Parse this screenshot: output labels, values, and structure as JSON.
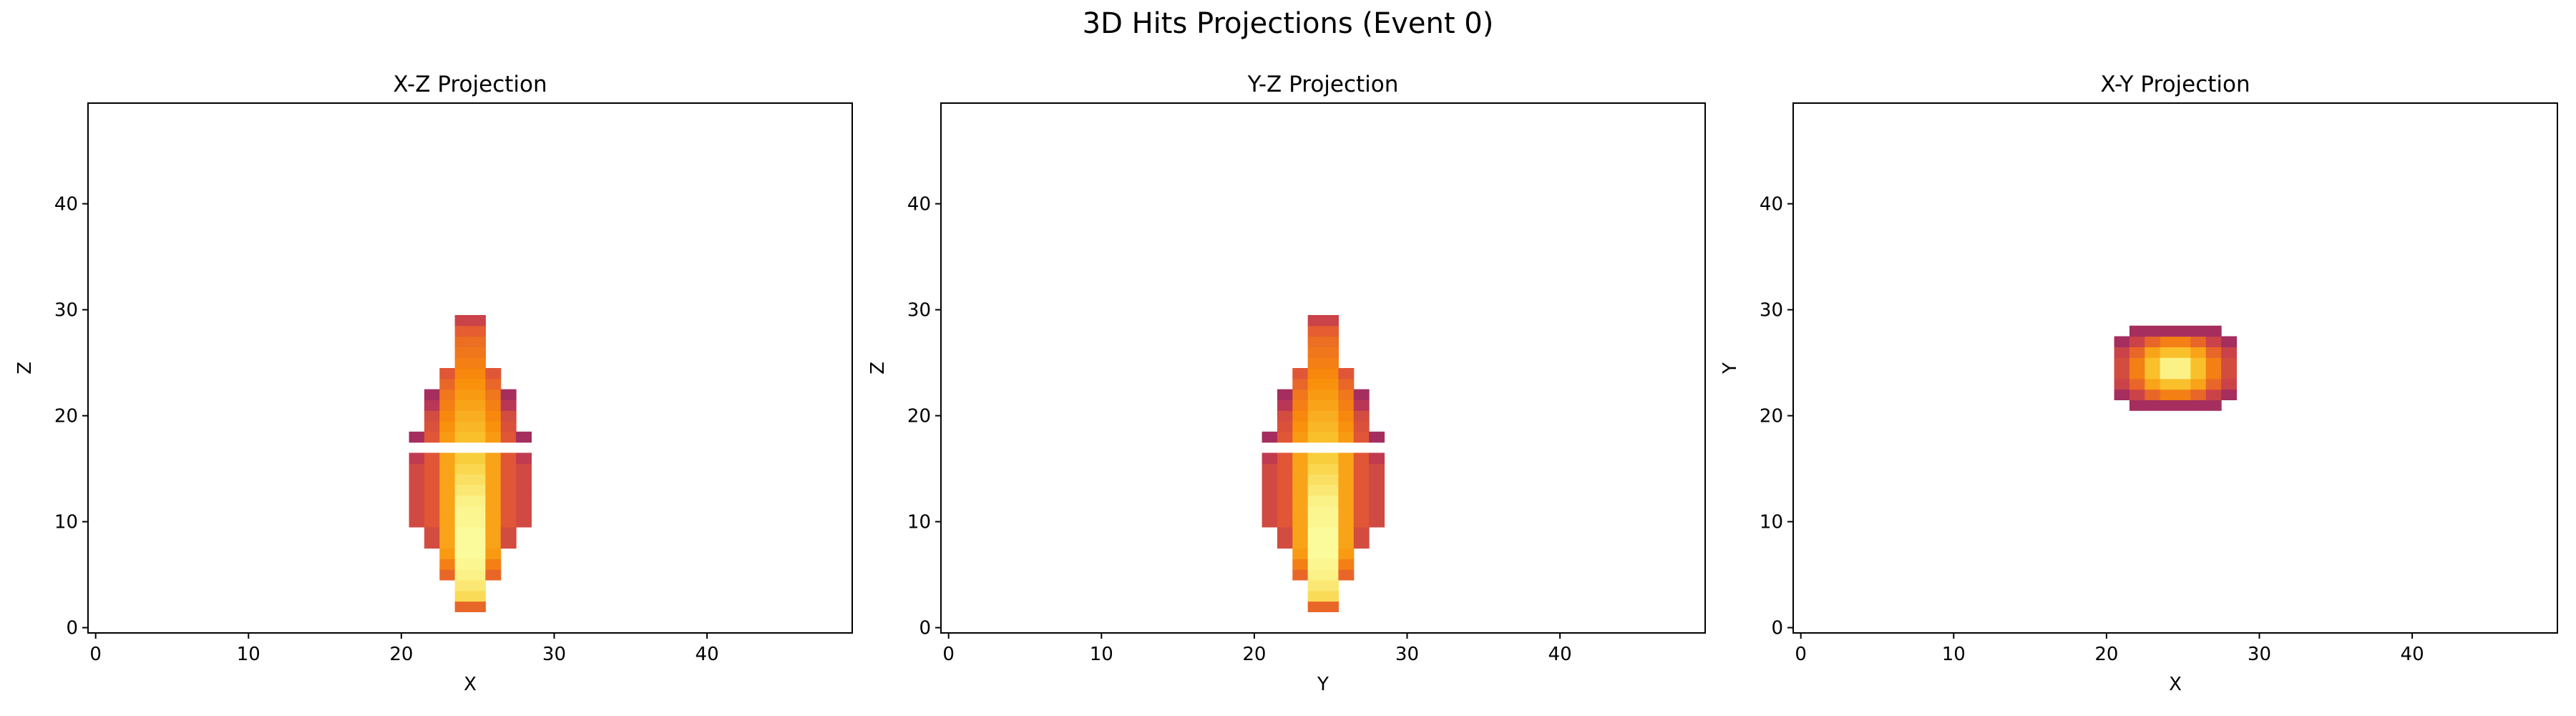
{
  "figure": {
    "title": "3D Hits Projections (Event 0)"
  },
  "chart_data": [
    {
      "type": "heatmap",
      "title": "X-Z Projection",
      "xlabel": "X",
      "ylabel": "Z",
      "xlim": [
        -0.5,
        49.5
      ],
      "ylim": [
        -0.5,
        49.5
      ],
      "xticks": [
        0,
        10,
        20,
        30,
        40
      ],
      "yticks": [
        0,
        10,
        20,
        30,
        40
      ],
      "colormap": "inferno",
      "color_range": [
        0,
        1
      ],
      "x_index": 21,
      "rows": [
        {
          "y": 2,
          "v": [
            0,
            0,
            0,
            0.66,
            0.66,
            0,
            0,
            0
          ]
        },
        {
          "y": 3,
          "v": [
            0,
            0,
            0,
            0.92,
            0.92,
            0,
            0,
            0
          ]
        },
        {
          "y": 4,
          "v": [
            0,
            0,
            0,
            0.95,
            0.95,
            0,
            0,
            0
          ]
        },
        {
          "y": 5,
          "v": [
            0,
            0,
            0.66,
            0.97,
            0.97,
            0.66,
            0,
            0
          ]
        },
        {
          "y": 6,
          "v": [
            0,
            0,
            0.72,
            0.98,
            0.98,
            0.72,
            0,
            0
          ]
        },
        {
          "y": 7,
          "v": [
            0,
            0,
            0.78,
            0.99,
            0.99,
            0.78,
            0,
            0
          ]
        },
        {
          "y": 8,
          "v": [
            0,
            0.58,
            0.8,
            0.99,
            0.99,
            0.8,
            0.58,
            0
          ]
        },
        {
          "y": 9,
          "v": [
            0,
            0.58,
            0.8,
            0.99,
            0.99,
            0.8,
            0.58,
            0
          ]
        },
        {
          "y": 10,
          "v": [
            0.57,
            0.62,
            0.8,
            0.98,
            0.98,
            0.8,
            0.62,
            0.57
          ]
        },
        {
          "y": 11,
          "v": [
            0.57,
            0.62,
            0.8,
            0.98,
            0.98,
            0.8,
            0.62,
            0.57
          ]
        },
        {
          "y": 12,
          "v": [
            0.57,
            0.62,
            0.8,
            0.97,
            0.97,
            0.8,
            0.62,
            0.57
          ]
        },
        {
          "y": 13,
          "v": [
            0.57,
            0.62,
            0.8,
            0.95,
            0.95,
            0.8,
            0.62,
            0.57
          ]
        },
        {
          "y": 14,
          "v": [
            0.57,
            0.62,
            0.8,
            0.93,
            0.93,
            0.8,
            0.62,
            0.57
          ]
        },
        {
          "y": 15,
          "v": [
            0.57,
            0.62,
            0.8,
            0.91,
            0.91,
            0.8,
            0.62,
            0.57
          ]
        },
        {
          "y": 16,
          "v": [
            0.52,
            0.62,
            0.8,
            0.89,
            0.89,
            0.8,
            0.62,
            0.52
          ]
        },
        {
          "y": 18,
          "v": [
            0.45,
            0.62,
            0.78,
            0.86,
            0.86,
            0.78,
            0.62,
            0.45
          ]
        },
        {
          "y": 19,
          "v": [
            0,
            0.6,
            0.76,
            0.84,
            0.84,
            0.76,
            0.6,
            0
          ]
        },
        {
          "y": 20,
          "v": [
            0,
            0.58,
            0.74,
            0.82,
            0.82,
            0.74,
            0.58,
            0
          ]
        },
        {
          "y": 21,
          "v": [
            0,
            0.5,
            0.72,
            0.8,
            0.8,
            0.72,
            0.5,
            0
          ]
        },
        {
          "y": 22,
          "v": [
            0,
            0.45,
            0.7,
            0.78,
            0.78,
            0.7,
            0.45,
            0
          ]
        },
        {
          "y": 23,
          "v": [
            0,
            0,
            0.66,
            0.76,
            0.76,
            0.66,
            0,
            0
          ]
        },
        {
          "y": 24,
          "v": [
            0,
            0,
            0.62,
            0.74,
            0.74,
            0.62,
            0,
            0
          ]
        },
        {
          "y": 25,
          "v": [
            0,
            0,
            0,
            0.72,
            0.72,
            0,
            0,
            0
          ]
        },
        {
          "y": 26,
          "v": [
            0,
            0,
            0,
            0.7,
            0.7,
            0,
            0,
            0
          ]
        },
        {
          "y": 27,
          "v": [
            0,
            0,
            0,
            0.68,
            0.68,
            0,
            0,
            0
          ]
        },
        {
          "y": 28,
          "v": [
            0,
            0,
            0,
            0.64,
            0.64,
            0,
            0,
            0
          ]
        },
        {
          "y": 29,
          "v": [
            0,
            0,
            0,
            0.55,
            0.55,
            0,
            0,
            0
          ]
        }
      ]
    },
    {
      "type": "heatmap",
      "title": "Y-Z Projection",
      "xlabel": "Y",
      "ylabel": "Z",
      "xlim": [
        -0.5,
        49.5
      ],
      "ylim": [
        -0.5,
        49.5
      ],
      "xticks": [
        0,
        10,
        20,
        30,
        40
      ],
      "yticks": [
        0,
        10,
        20,
        30,
        40
      ],
      "colormap": "inferno",
      "color_range": [
        0,
        1
      ],
      "x_index": 21,
      "rows": [
        {
          "y": 2,
          "v": [
            0,
            0,
            0,
            0.66,
            0.66,
            0,
            0,
            0
          ]
        },
        {
          "y": 3,
          "v": [
            0,
            0,
            0,
            0.92,
            0.92,
            0,
            0,
            0
          ]
        },
        {
          "y": 4,
          "v": [
            0,
            0,
            0,
            0.95,
            0.95,
            0,
            0,
            0
          ]
        },
        {
          "y": 5,
          "v": [
            0,
            0,
            0.66,
            0.97,
            0.97,
            0.66,
            0,
            0
          ]
        },
        {
          "y": 6,
          "v": [
            0,
            0,
            0.72,
            0.98,
            0.98,
            0.72,
            0,
            0
          ]
        },
        {
          "y": 7,
          "v": [
            0,
            0,
            0.78,
            0.99,
            0.99,
            0.78,
            0,
            0
          ]
        },
        {
          "y": 8,
          "v": [
            0,
            0.58,
            0.8,
            0.99,
            0.99,
            0.8,
            0.58,
            0
          ]
        },
        {
          "y": 9,
          "v": [
            0,
            0.58,
            0.8,
            0.99,
            0.99,
            0.8,
            0.58,
            0
          ]
        },
        {
          "y": 10,
          "v": [
            0.57,
            0.62,
            0.8,
            0.98,
            0.98,
            0.8,
            0.62,
            0.57
          ]
        },
        {
          "y": 11,
          "v": [
            0.57,
            0.62,
            0.8,
            0.98,
            0.98,
            0.8,
            0.62,
            0.57
          ]
        },
        {
          "y": 12,
          "v": [
            0.57,
            0.62,
            0.8,
            0.97,
            0.97,
            0.8,
            0.62,
            0.57
          ]
        },
        {
          "y": 13,
          "v": [
            0.57,
            0.62,
            0.8,
            0.95,
            0.95,
            0.8,
            0.62,
            0.57
          ]
        },
        {
          "y": 14,
          "v": [
            0.57,
            0.62,
            0.8,
            0.93,
            0.93,
            0.8,
            0.62,
            0.57
          ]
        },
        {
          "y": 15,
          "v": [
            0.57,
            0.62,
            0.8,
            0.91,
            0.91,
            0.8,
            0.62,
            0.57
          ]
        },
        {
          "y": 16,
          "v": [
            0.52,
            0.62,
            0.8,
            0.89,
            0.89,
            0.8,
            0.62,
            0.52
          ]
        },
        {
          "y": 18,
          "v": [
            0.45,
            0.62,
            0.78,
            0.86,
            0.86,
            0.78,
            0.62,
            0.45
          ]
        },
        {
          "y": 19,
          "v": [
            0,
            0.6,
            0.76,
            0.84,
            0.84,
            0.76,
            0.6,
            0
          ]
        },
        {
          "y": 20,
          "v": [
            0,
            0.58,
            0.74,
            0.82,
            0.82,
            0.74,
            0.58,
            0
          ]
        },
        {
          "y": 21,
          "v": [
            0,
            0.5,
            0.72,
            0.8,
            0.8,
            0.72,
            0.5,
            0
          ]
        },
        {
          "y": 22,
          "v": [
            0,
            0.45,
            0.7,
            0.78,
            0.78,
            0.7,
            0.45,
            0
          ]
        },
        {
          "y": 23,
          "v": [
            0,
            0,
            0.66,
            0.76,
            0.76,
            0.66,
            0,
            0
          ]
        },
        {
          "y": 24,
          "v": [
            0,
            0,
            0.62,
            0.74,
            0.74,
            0.62,
            0,
            0
          ]
        },
        {
          "y": 25,
          "v": [
            0,
            0,
            0,
            0.72,
            0.72,
            0,
            0,
            0
          ]
        },
        {
          "y": 26,
          "v": [
            0,
            0,
            0,
            0.7,
            0.7,
            0,
            0,
            0
          ]
        },
        {
          "y": 27,
          "v": [
            0,
            0,
            0,
            0.68,
            0.68,
            0,
            0,
            0
          ]
        },
        {
          "y": 28,
          "v": [
            0,
            0,
            0,
            0.64,
            0.64,
            0,
            0,
            0
          ]
        },
        {
          "y": 29,
          "v": [
            0,
            0,
            0,
            0.55,
            0.55,
            0,
            0,
            0
          ]
        }
      ]
    },
    {
      "type": "heatmap",
      "title": "X-Y Projection",
      "xlabel": "X",
      "ylabel": "Y",
      "xlim": [
        -0.5,
        49.5
      ],
      "ylim": [
        -0.5,
        49.5
      ],
      "xticks": [
        0,
        10,
        20,
        30,
        40
      ],
      "yticks": [
        0,
        10,
        20,
        30,
        40
      ],
      "colormap": "inferno",
      "color_range": [
        0,
        1
      ],
      "x_index": 21,
      "rows": [
        {
          "y": 21,
          "v": [
            0,
            0.45,
            0.45,
            0.45,
            0.45,
            0.45,
            0.45,
            0
          ]
        },
        {
          "y": 22,
          "v": [
            0.45,
            0.55,
            0.66,
            0.72,
            0.72,
            0.66,
            0.55,
            0.45
          ]
        },
        {
          "y": 23,
          "v": [
            0.55,
            0.66,
            0.8,
            0.86,
            0.86,
            0.8,
            0.66,
            0.55
          ]
        },
        {
          "y": 24,
          "v": [
            0.58,
            0.72,
            0.86,
            0.97,
            0.97,
            0.86,
            0.72,
            0.58
          ]
        },
        {
          "y": 25,
          "v": [
            0.58,
            0.72,
            0.86,
            0.97,
            0.97,
            0.86,
            0.72,
            0.58
          ]
        },
        {
          "y": 26,
          "v": [
            0.55,
            0.66,
            0.8,
            0.86,
            0.86,
            0.8,
            0.66,
            0.55
          ]
        },
        {
          "y": 27,
          "v": [
            0.45,
            0.55,
            0.66,
            0.72,
            0.72,
            0.66,
            0.55,
            0.45
          ]
        },
        {
          "y": 28,
          "v": [
            0,
            0.45,
            0.45,
            0.45,
            0.45,
            0.45,
            0.45,
            0
          ]
        }
      ]
    }
  ]
}
